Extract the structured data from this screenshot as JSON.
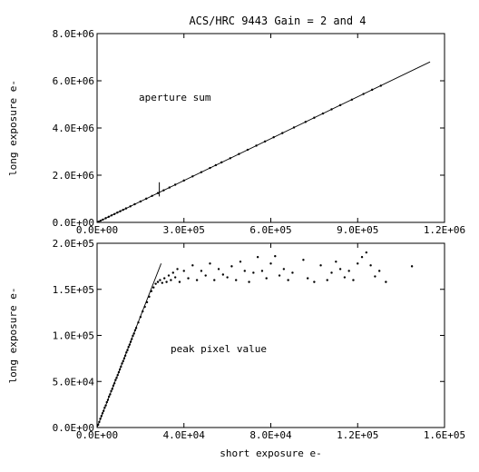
{
  "chart_data": [
    {
      "type": "scatter",
      "title": "ACS/HRC 9443 Gain = 2 and 4",
      "annotation": "aperture sum",
      "xlabel": "",
      "ylabel": "long exposure e-",
      "xlim": [
        0,
        1200000
      ],
      "ylim": [
        0,
        8000000
      ],
      "x_ticks": [
        0,
        300000,
        600000,
        900000,
        1200000
      ],
      "x_tick_labels": [
        "0.0E+00",
        "3.0E+05",
        "6.0E+05",
        "9.0E+05",
        "1.2E+06"
      ],
      "y_ticks": [
        0,
        2000000,
        4000000,
        6000000,
        8000000
      ],
      "y_tick_labels": [
        "0.0E+00",
        "2.0E+06",
        "4.0E+06",
        "6.0E+06",
        "8.0E+06"
      ],
      "grid": false,
      "fit_line": {
        "x": [
          0,
          1150000
        ],
        "y": [
          0,
          6800000
        ]
      },
      "vertical_marker": {
        "x": 215000,
        "y": [
          1100000,
          1700000
        ]
      },
      "series": [
        {
          "values": [
            [
              5000,
              28000
            ],
            [
              12000,
              70000
            ],
            [
              20000,
              118000
            ],
            [
              30000,
              178000
            ],
            [
              40000,
              236000
            ],
            [
              50000,
              296000
            ],
            [
              60000,
              355000
            ],
            [
              70000,
              414000
            ],
            [
              80000,
              473000
            ],
            [
              90000,
              532000
            ],
            [
              100000,
              591000
            ],
            [
              115000,
              680000
            ],
            [
              130000,
              769000
            ],
            [
              150000,
              887000
            ],
            [
              170000,
              1005000
            ],
            [
              190000,
              1123000
            ],
            [
              210000,
              1242000
            ],
            [
              230000,
              1360000
            ],
            [
              250000,
              1478000
            ],
            [
              270000,
              1596000
            ],
            [
              300000,
              1774000
            ],
            [
              330000,
              1951000
            ],
            [
              360000,
              2129000
            ],
            [
              390000,
              2306000
            ],
            [
              410000,
              2425000
            ],
            [
              430000,
              2543000
            ],
            [
              460000,
              2720000
            ],
            [
              490000,
              2897000
            ],
            [
              520000,
              3075000
            ],
            [
              550000,
              3252000
            ],
            [
              580000,
              3430000
            ],
            [
              610000,
              3607000
            ],
            [
              640000,
              3784000
            ],
            [
              680000,
              4020000
            ],
            [
              720000,
              4257000
            ],
            [
              750000,
              4434000
            ],
            [
              780000,
              4612000
            ],
            [
              810000,
              4790000
            ],
            [
              840000,
              4967000
            ],
            [
              880000,
              5200000
            ],
            [
              920000,
              5440000
            ],
            [
              950000,
              5620000
            ],
            [
              980000,
              5790000
            ]
          ]
        }
      ]
    },
    {
      "type": "scatter",
      "annotation": "peak pixel value",
      "xlabel": "short exposure e-",
      "ylabel": "long exposure e-",
      "xlim": [
        0,
        160000
      ],
      "ylim": [
        0,
        200000
      ],
      "x_ticks": [
        0,
        40000,
        80000,
        120000,
        160000
      ],
      "x_tick_labels": [
        "0.0E+00",
        "4.0E+04",
        "8.0E+04",
        "1.2E+05",
        "1.6E+05"
      ],
      "y_ticks": [
        0,
        50000,
        100000,
        150000,
        200000
      ],
      "y_tick_labels": [
        "0.0E+00",
        "5.0E+04",
        "1.0E+05",
        "1.5E+05",
        "2.0E+05"
      ],
      "grid": false,
      "fit_line": {
        "x": [
          0,
          29500
        ],
        "y": [
          0,
          178000
        ]
      },
      "series": [
        {
          "values": [
            [
              500,
              3000
            ],
            [
              1000,
              6000
            ],
            [
              1500,
              9500
            ],
            [
              2000,
              12500
            ],
            [
              2500,
              15500
            ],
            [
              3000,
              18000
            ],
            [
              3500,
              21500
            ],
            [
              4000,
              24000
            ],
            [
              4500,
              27500
            ],
            [
              5000,
              30000
            ],
            [
              5500,
              33500
            ],
            [
              6000,
              36000
            ],
            [
              6500,
              39500
            ],
            [
              7000,
              42000
            ],
            [
              7500,
              45500
            ],
            [
              8000,
              48000
            ],
            [
              8500,
              51500
            ],
            [
              9000,
              54000
            ],
            [
              9500,
              57000
            ],
            [
              10000,
              60000
            ],
            [
              10500,
              63000
            ],
            [
              11000,
              66000
            ],
            [
              11500,
              69500
            ],
            [
              12000,
              72000
            ],
            [
              12500,
              75000
            ],
            [
              13000,
              78000
            ],
            [
              13500,
              81500
            ],
            [
              14000,
              84000
            ],
            [
              14500,
              87500
            ],
            [
              15000,
              90000
            ],
            [
              15500,
              93000
            ],
            [
              16000,
              96000
            ],
            [
              16500,
              99500
            ],
            [
              17000,
              102000
            ],
            [
              17500,
              105500
            ],
            [
              18000,
              108000
            ],
            [
              19000,
              114000
            ],
            [
              20000,
              120000
            ],
            [
              21000,
              126000
            ],
            [
              22000,
              131000
            ],
            [
              23000,
              136000
            ],
            [
              24000,
              142000
            ],
            [
              25000,
              148000
            ],
            [
              26000,
              152000
            ],
            [
              27000,
              156000
            ],
            [
              28000,
              158000
            ],
            [
              29000,
              160000
            ],
            [
              30000,
              157000
            ],
            [
              31000,
              162000
            ],
            [
              32000,
              158000
            ],
            [
              33000,
              165000
            ],
            [
              34000,
              160000
            ],
            [
              35000,
              168000
            ],
            [
              36000,
              163000
            ],
            [
              37000,
              172000
            ],
            [
              38000,
              158000
            ],
            [
              40000,
              170000
            ],
            [
              42000,
              162000
            ],
            [
              44000,
              176000
            ],
            [
              46000,
              160000
            ],
            [
              48000,
              170000
            ],
            [
              50000,
              165000
            ],
            [
              52000,
              178000
            ],
            [
              54000,
              160000
            ],
            [
              56000,
              172000
            ],
            [
              58000,
              166000
            ],
            [
              60000,
              163000
            ],
            [
              62000,
              175000
            ],
            [
              64000,
              160000
            ],
            [
              66000,
              180000
            ],
            [
              68000,
              170000
            ],
            [
              70000,
              158000
            ],
            [
              72000,
              168000
            ],
            [
              74000,
              185000
            ],
            [
              76000,
              170000
            ],
            [
              78000,
              162000
            ],
            [
              80000,
              178000
            ],
            [
              82000,
              186000
            ],
            [
              84000,
              165000
            ],
            [
              86000,
              172000
            ],
            [
              88000,
              160000
            ],
            [
              90000,
              168000
            ],
            [
              95000,
              182000
            ],
            [
              97000,
              162000
            ],
            [
              100000,
              158000
            ],
            [
              103000,
              176000
            ],
            [
              106000,
              160000
            ],
            [
              108000,
              168000
            ],
            [
              110000,
              180000
            ],
            [
              112000,
              172000
            ],
            [
              114000,
              163000
            ],
            [
              116000,
              170000
            ],
            [
              118000,
              160000
            ],
            [
              120000,
              178000
            ],
            [
              122000,
              185000
            ],
            [
              124000,
              190000
            ],
            [
              126000,
              176000
            ],
            [
              128000,
              164000
            ],
            [
              130000,
              170000
            ],
            [
              133000,
              158000
            ],
            [
              145000,
              175000
            ]
          ]
        }
      ]
    }
  ]
}
